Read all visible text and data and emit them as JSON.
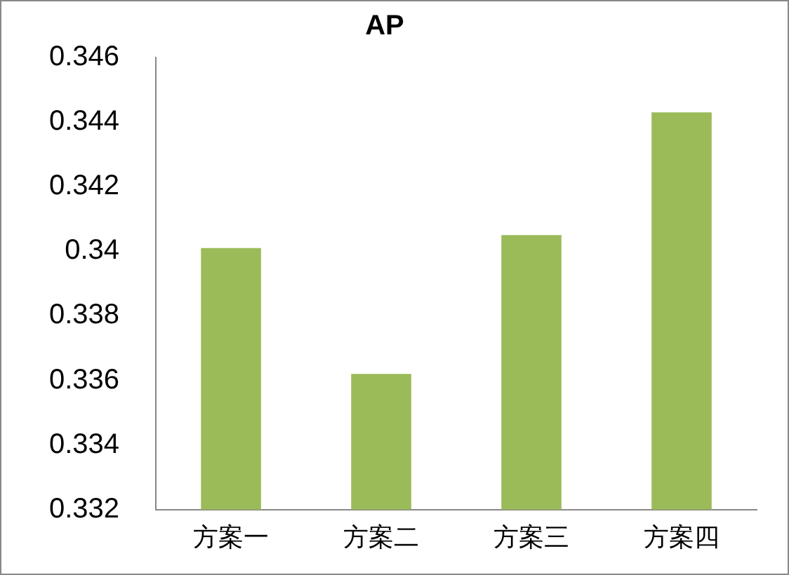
{
  "chart_data": {
    "type": "bar",
    "title": "AP",
    "categories": [
      "方案一",
      "方案二",
      "方案三",
      "方案四"
    ],
    "values": [
      0.3401,
      0.3362,
      0.3405,
      0.3443
    ],
    "color": "#9bbb59",
    "ylim": [
      0.332,
      0.346
    ],
    "yticks": [
      0.332,
      0.334,
      0.336,
      0.338,
      0.34,
      0.342,
      0.344,
      0.346
    ],
    "grid": false,
    "legend": false
  }
}
